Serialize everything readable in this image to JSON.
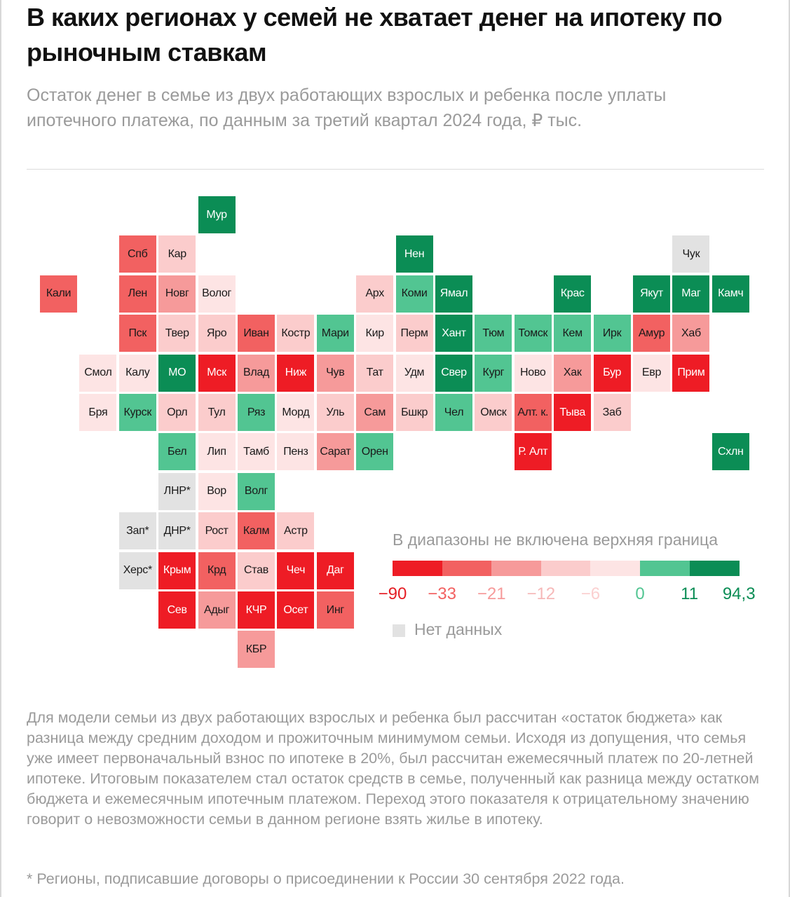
{
  "title": "В каких регионах у семей не хватает денег на ипотеку по рыночным ставкам",
  "subtitle": "Остаток денег в семье из двух работающих взрослых и ребенка после уплаты ипотечного платежа, по данным за третий квартал 2024 года, ₽ тыс.",
  "legend": {
    "title": "В диапазоны не включена верхняя граница",
    "ticks": [
      "−90",
      "−33",
      "−21",
      "−12",
      "−6",
      "0",
      "11",
      "94,3"
    ],
    "colors": [
      "#ee1c25",
      "#f26161",
      "#f69a9a",
      "#fbcccc",
      "#fde4e4",
      "#52c592",
      "#0b8d55"
    ],
    "tick_colors": [
      "#e51e25",
      "#f26161",
      "#f69a9a",
      "#f6b8b8",
      "#fbd0d0",
      "#52c592",
      "#0b8d55",
      "#0b8d55"
    ],
    "no_data_label": "Нет данных",
    "no_data_color": "#e2e2e2"
  },
  "regions": [
    {
      "label": "Мур",
      "row": 0,
      "col": 5,
      "bin": 6
    },
    {
      "label": "Спб",
      "row": 1,
      "col": 3,
      "bin": 1
    },
    {
      "label": "Кар",
      "row": 1,
      "col": 4,
      "bin": 3
    },
    {
      "label": "Нен",
      "row": 1,
      "col": 10,
      "bin": 6
    },
    {
      "label": "Чук",
      "row": 1,
      "col": 17,
      "bin": -1
    },
    {
      "label": "Кали",
      "row": 2,
      "col": 1,
      "bin": 1
    },
    {
      "label": "Лен",
      "row": 2,
      "col": 3,
      "bin": 1
    },
    {
      "label": "Новг",
      "row": 2,
      "col": 4,
      "bin": 2
    },
    {
      "label": "Волог",
      "row": 2,
      "col": 5,
      "bin": 4
    },
    {
      "label": "Арх",
      "row": 2,
      "col": 9,
      "bin": 3
    },
    {
      "label": "Коми",
      "row": 2,
      "col": 10,
      "bin": 5
    },
    {
      "label": "Ямал",
      "row": 2,
      "col": 11,
      "bin": 6
    },
    {
      "label": "Крас",
      "row": 2,
      "col": 14,
      "bin": 6
    },
    {
      "label": "Якут",
      "row": 2,
      "col": 16,
      "bin": 6
    },
    {
      "label": "Маг",
      "row": 2,
      "col": 17,
      "bin": 6
    },
    {
      "label": "Камч",
      "row": 2,
      "col": 18,
      "bin": 6
    },
    {
      "label": "Пск",
      "row": 3,
      "col": 3,
      "bin": 1
    },
    {
      "label": "Твер",
      "row": 3,
      "col": 4,
      "bin": 3
    },
    {
      "label": "Яро",
      "row": 3,
      "col": 5,
      "bin": 3
    },
    {
      "label": "Иван",
      "row": 3,
      "col": 6,
      "bin": 1
    },
    {
      "label": "Костр",
      "row": 3,
      "col": 7,
      "bin": 3
    },
    {
      "label": "Мари",
      "row": 3,
      "col": 8,
      "bin": 5
    },
    {
      "label": "Кир",
      "row": 3,
      "col": 9,
      "bin": 4
    },
    {
      "label": "Перм",
      "row": 3,
      "col": 10,
      "bin": 3
    },
    {
      "label": "Хант",
      "row": 3,
      "col": 11,
      "bin": 6
    },
    {
      "label": "Тюм",
      "row": 3,
      "col": 12,
      "bin": 5
    },
    {
      "label": "Томск",
      "row": 3,
      "col": 13,
      "bin": 5
    },
    {
      "label": "Кем",
      "row": 3,
      "col": 14,
      "bin": 5
    },
    {
      "label": "Ирк",
      "row": 3,
      "col": 15,
      "bin": 5
    },
    {
      "label": "Амур",
      "row": 3,
      "col": 16,
      "bin": 1
    },
    {
      "label": "Хаб",
      "row": 3,
      "col": 17,
      "bin": 2
    },
    {
      "label": "Смол",
      "row": 4,
      "col": 2,
      "bin": 4
    },
    {
      "label": "Калу",
      "row": 4,
      "col": 3,
      "bin": 4
    },
    {
      "label": "МО",
      "row": 4,
      "col": 4,
      "bin": 6
    },
    {
      "label": "Мск",
      "row": 4,
      "col": 5,
      "bin": 0
    },
    {
      "label": "Влад",
      "row": 4,
      "col": 6,
      "bin": 2
    },
    {
      "label": "Ниж",
      "row": 4,
      "col": 7,
      "bin": 0
    },
    {
      "label": "Чув",
      "row": 4,
      "col": 8,
      "bin": 2
    },
    {
      "label": "Тат",
      "row": 4,
      "col": 9,
      "bin": 3
    },
    {
      "label": "Удм",
      "row": 4,
      "col": 10,
      "bin": 4
    },
    {
      "label": "Свер",
      "row": 4,
      "col": 11,
      "bin": 6
    },
    {
      "label": "Кург",
      "row": 4,
      "col": 12,
      "bin": 5
    },
    {
      "label": "Ново",
      "row": 4,
      "col": 13,
      "bin": 4
    },
    {
      "label": "Хак",
      "row": 4,
      "col": 14,
      "bin": 2
    },
    {
      "label": "Бур",
      "row": 4,
      "col": 15,
      "bin": 0
    },
    {
      "label": "Евр",
      "row": 4,
      "col": 16,
      "bin": 4
    },
    {
      "label": "Прим",
      "row": 4,
      "col": 17,
      "bin": 0
    },
    {
      "label": "Бря",
      "row": 5,
      "col": 2,
      "bin": 4
    },
    {
      "label": "Курск",
      "row": 5,
      "col": 3,
      "bin": 5
    },
    {
      "label": "Орл",
      "row": 5,
      "col": 4,
      "bin": 3
    },
    {
      "label": "Тул",
      "row": 5,
      "col": 5,
      "bin": 3
    },
    {
      "label": "Ряз",
      "row": 5,
      "col": 6,
      "bin": 5
    },
    {
      "label": "Морд",
      "row": 5,
      "col": 7,
      "bin": 4
    },
    {
      "label": "Уль",
      "row": 5,
      "col": 8,
      "bin": 3
    },
    {
      "label": "Сам",
      "row": 5,
      "col": 9,
      "bin": 2
    },
    {
      "label": "Бшкр",
      "row": 5,
      "col": 10,
      "bin": 3
    },
    {
      "label": "Чел",
      "row": 5,
      "col": 11,
      "bin": 5
    },
    {
      "label": "Омск",
      "row": 5,
      "col": 12,
      "bin": 3
    },
    {
      "label": "Алт. к.",
      "row": 5,
      "col": 13,
      "bin": 1
    },
    {
      "label": "Тыва",
      "row": 5,
      "col": 14,
      "bin": 0
    },
    {
      "label": "Заб",
      "row": 5,
      "col": 15,
      "bin": 3
    },
    {
      "label": "Бел",
      "row": 6,
      "col": 4,
      "bin": 5
    },
    {
      "label": "Лип",
      "row": 6,
      "col": 5,
      "bin": 4
    },
    {
      "label": "Тамб",
      "row": 6,
      "col": 6,
      "bin": 4
    },
    {
      "label": "Пенз",
      "row": 6,
      "col": 7,
      "bin": 4
    },
    {
      "label": "Сарат",
      "row": 6,
      "col": 8,
      "bin": 2
    },
    {
      "label": "Орен",
      "row": 6,
      "col": 9,
      "bin": 5
    },
    {
      "label": "Р. Алт",
      "row": 6,
      "col": 13,
      "bin": 0
    },
    {
      "label": "Схлн",
      "row": 6,
      "col": 18,
      "bin": 6
    },
    {
      "label": "ЛНР*",
      "row": 7,
      "col": 4,
      "bin": -1
    },
    {
      "label": "Вор",
      "row": 7,
      "col": 5,
      "bin": 4
    },
    {
      "label": "Волг",
      "row": 7,
      "col": 6,
      "bin": 5
    },
    {
      "label": "Зап*",
      "row": 8,
      "col": 3,
      "bin": -1
    },
    {
      "label": "ДНР*",
      "row": 8,
      "col": 4,
      "bin": -1
    },
    {
      "label": "Рост",
      "row": 8,
      "col": 5,
      "bin": 3
    },
    {
      "label": "Калм",
      "row": 8,
      "col": 6,
      "bin": 1
    },
    {
      "label": "Астр",
      "row": 8,
      "col": 7,
      "bin": 3
    },
    {
      "label": "Херс*",
      "row": 9,
      "col": 3,
      "bin": -1
    },
    {
      "label": "Крым",
      "row": 9,
      "col": 4,
      "bin": 0
    },
    {
      "label": "Крд",
      "row": 9,
      "col": 5,
      "bin": 1
    },
    {
      "label": "Став",
      "row": 9,
      "col": 6,
      "bin": 3
    },
    {
      "label": "Чеч",
      "row": 9,
      "col": 7,
      "bin": 0
    },
    {
      "label": "Даг",
      "row": 9,
      "col": 8,
      "bin": 0
    },
    {
      "label": "Сев",
      "row": 10,
      "col": 4,
      "bin": 0
    },
    {
      "label": "Адыг",
      "row": 10,
      "col": 5,
      "bin": 2
    },
    {
      "label": "КЧР",
      "row": 10,
      "col": 6,
      "bin": 0
    },
    {
      "label": "Осет",
      "row": 10,
      "col": 7,
      "bin": 0
    },
    {
      "label": "Инг",
      "row": 10,
      "col": 8,
      "bin": 1
    },
    {
      "label": "КБР",
      "row": 11,
      "col": 6,
      "bin": 2
    }
  ],
  "note": "Для модели семьи из двух работающих взрослых и ребенка был рассчитан «остаток бюджета» как разница между средним доходом и прожиточным минимумом семьи. Исходя из допущения, что семья уже имеет первоначальный взнос по ипотеке в 20%, был рассчитан ежемесячный платеж по 20-летней ипотеке. Итоговым показателем стал остаток средств в семье, полученный как разница между остатком бюджета и ежемесячным ипотечным платежом. Переход этого показателя к отрицательному значению говорит о невозможности семьи в данном регионе взять жилье в ипотеку.",
  "footnote": "* Регионы, подписавшие договоры о присоединении к России 30 сентября 2022 года."
}
